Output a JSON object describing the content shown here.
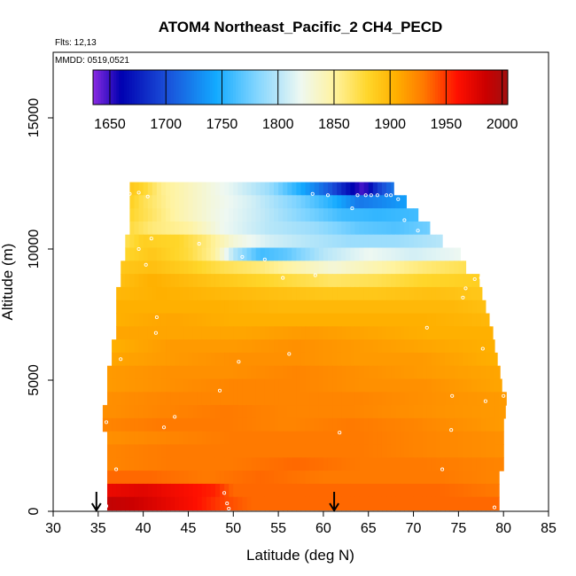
{
  "chart_data": {
    "type": "heatmap",
    "title": "ATOM4 Northeast_Pacific_2 CH4_PECD",
    "annotations": {
      "flights": "Flts: 12,13",
      "dates": "MMDD: 0519,0521"
    },
    "xlabel": "Latitude (deg N)",
    "ylabel": "Altitude (m)",
    "xlim": [
      30,
      85
    ],
    "ylim": [
      0,
      17500
    ],
    "x_ticks": [
      "30",
      "35",
      "40",
      "45",
      "50",
      "55",
      "60",
      "65",
      "70",
      "75",
      "80",
      "85"
    ],
    "y_ticks": [
      "0",
      "5000",
      "10000",
      "15000"
    ],
    "colorbar": {
      "range": [
        1635,
        2005
      ],
      "ticks": [
        "1650",
        "1700",
        "1750",
        "1800",
        "1850",
        "1900",
        "1950",
        "2000"
      ],
      "stops": [
        [
          1635,
          "#8a2be2"
        ],
        [
          1660,
          "#0000b0"
        ],
        [
          1700,
          "#1a4ed8"
        ],
        [
          1745,
          "#13aaff"
        ],
        [
          1780,
          "#7fd4ff"
        ],
        [
          1820,
          "#eef8f2"
        ],
        [
          1850,
          "#fff3a0"
        ],
        [
          1880,
          "#ffd62a"
        ],
        [
          1905,
          "#ffb000"
        ],
        [
          1930,
          "#ff7a00"
        ],
        [
          1960,
          "#ff1000"
        ],
        [
          1985,
          "#cc0000"
        ],
        [
          2005,
          "#a01010"
        ]
      ]
    },
    "profile_rows": [
      {
        "alt": 12300,
        "lat_min": 38.5,
        "lat_max": 67.8,
        "points": [
          [
            38.5,
            1890
          ],
          [
            40,
            1880
          ],
          [
            42,
            1855
          ],
          [
            46,
            1835
          ],
          [
            50,
            1815
          ],
          [
            54,
            1790
          ],
          [
            58,
            1740
          ],
          [
            61,
            1700
          ],
          [
            63,
            1665
          ],
          [
            64.5,
            1645
          ],
          [
            66,
            1690
          ],
          [
            67.8,
            1720
          ]
        ]
      },
      {
        "alt": 11800,
        "lat_min": 38.5,
        "lat_max": 69.2,
        "points": [
          [
            38.5,
            1885
          ],
          [
            40,
            1870
          ],
          [
            43,
            1850
          ],
          [
            47,
            1830
          ],
          [
            52,
            1810
          ],
          [
            57,
            1780
          ],
          [
            61,
            1750
          ],
          [
            64,
            1720
          ],
          [
            67,
            1730
          ],
          [
            69.2,
            1740
          ]
        ]
      },
      {
        "alt": 11300,
        "lat_min": 38.5,
        "lat_max": 70.5,
        "points": [
          [
            38.5,
            1880
          ],
          [
            41,
            1865
          ],
          [
            44,
            1845
          ],
          [
            48,
            1825
          ],
          [
            53,
            1805
          ],
          [
            58,
            1780
          ],
          [
            62,
            1760
          ],
          [
            66,
            1755
          ],
          [
            70.5,
            1760
          ]
        ]
      },
      {
        "alt": 10800,
        "lat_min": 38.5,
        "lat_max": 71.8,
        "points": [
          [
            38.5,
            1875
          ],
          [
            41,
            1860
          ],
          [
            45,
            1850
          ],
          [
            49,
            1820
          ],
          [
            54,
            1800
          ],
          [
            59,
            1790
          ],
          [
            64,
            1770
          ],
          [
            68,
            1765
          ],
          [
            71.8,
            1775
          ]
        ]
      },
      {
        "alt": 10300,
        "lat_min": 38.0,
        "lat_max": 73.2,
        "points": [
          [
            38,
            1870
          ],
          [
            40,
            1885
          ],
          [
            44,
            1880
          ],
          [
            47,
            1860
          ],
          [
            50,
            1830
          ],
          [
            54,
            1810
          ],
          [
            58,
            1800
          ],
          [
            63,
            1790
          ],
          [
            68,
            1790
          ],
          [
            73.2,
            1800
          ]
        ]
      },
      {
        "alt": 9800,
        "lat_min": 38.0,
        "lat_max": 75.2,
        "points": [
          [
            38,
            1880
          ],
          [
            41,
            1890
          ],
          [
            45,
            1875
          ],
          [
            48,
            1850
          ],
          [
            50,
            1800
          ],
          [
            53,
            1760
          ],
          [
            56,
            1770
          ],
          [
            60,
            1800
          ],
          [
            65,
            1820
          ],
          [
            70,
            1810
          ],
          [
            75.2,
            1820
          ]
        ]
      },
      {
        "alt": 9300,
        "lat_min": 37.5,
        "lat_max": 75.8,
        "points": [
          [
            37.5,
            1890
          ],
          [
            41,
            1895
          ],
          [
            45,
            1885
          ],
          [
            49,
            1870
          ],
          [
            53,
            1860
          ],
          [
            57,
            1845
          ],
          [
            61,
            1830
          ],
          [
            66,
            1845
          ],
          [
            71,
            1860
          ],
          [
            75.8,
            1870
          ]
        ]
      },
      {
        "alt": 8800,
        "lat_min": 37.5,
        "lat_max": 77.3,
        "points": [
          [
            37.5,
            1895
          ],
          [
            41,
            1905
          ],
          [
            46,
            1895
          ],
          [
            51,
            1885
          ],
          [
            56,
            1875
          ],
          [
            61,
            1865
          ],
          [
            66,
            1870
          ],
          [
            71,
            1880
          ],
          [
            77.3,
            1885
          ]
        ]
      },
      {
        "alt": 8300,
        "lat_min": 37.0,
        "lat_max": 77.6,
        "points": [
          [
            37,
            1900
          ],
          [
            42,
            1905
          ],
          [
            48,
            1900
          ],
          [
            54,
            1895
          ],
          [
            60,
            1890
          ],
          [
            66,
            1890
          ],
          [
            72,
            1895
          ],
          [
            77.6,
            1890
          ]
        ]
      },
      {
        "alt": 7800,
        "lat_min": 37.0,
        "lat_max": 78.0,
        "points": [
          [
            37,
            1905
          ],
          [
            42,
            1905
          ],
          [
            48,
            1905
          ],
          [
            55,
            1900
          ],
          [
            62,
            1900
          ],
          [
            68,
            1900
          ],
          [
            74,
            1900
          ],
          [
            78,
            1895
          ]
        ]
      },
      {
        "alt": 7300,
        "lat_min": 37.0,
        "lat_max": 78.4,
        "points": [
          [
            37,
            1905
          ],
          [
            43,
            1910
          ],
          [
            50,
            1905
          ],
          [
            57,
            1905
          ],
          [
            64,
            1905
          ],
          [
            71,
            1905
          ],
          [
            78.4,
            1900
          ]
        ]
      },
      {
        "alt": 6800,
        "lat_min": 37.0,
        "lat_max": 78.8,
        "points": [
          [
            37,
            1910
          ],
          [
            44,
            1910
          ],
          [
            51,
            1910
          ],
          [
            58,
            1915
          ],
          [
            65,
            1910
          ],
          [
            72,
            1905
          ],
          [
            78.8,
            1905
          ]
        ]
      },
      {
        "alt": 6300,
        "lat_min": 36.5,
        "lat_max": 79.0,
        "points": [
          [
            36.5,
            1905
          ],
          [
            43,
            1915
          ],
          [
            50,
            1915
          ],
          [
            57,
            1920
          ],
          [
            64,
            1915
          ],
          [
            71,
            1910
          ],
          [
            79,
            1905
          ]
        ]
      },
      {
        "alt": 5800,
        "lat_min": 36.5,
        "lat_max": 79.3,
        "points": [
          [
            36.5,
            1910
          ],
          [
            43,
            1915
          ],
          [
            50,
            1920
          ],
          [
            57,
            1920
          ],
          [
            64,
            1915
          ],
          [
            71,
            1915
          ],
          [
            79.3,
            1905
          ]
        ]
      },
      {
        "alt": 5300,
        "lat_min": 36.0,
        "lat_max": 79.6,
        "points": [
          [
            36,
            1915
          ],
          [
            43,
            1920
          ],
          [
            50,
            1920
          ],
          [
            57,
            1925
          ],
          [
            64,
            1920
          ],
          [
            71,
            1915
          ],
          [
            79.6,
            1910
          ]
        ]
      },
      {
        "alt": 4800,
        "lat_min": 36.0,
        "lat_max": 79.8,
        "points": [
          [
            36,
            1915
          ],
          [
            43,
            1920
          ],
          [
            50,
            1925
          ],
          [
            57,
            1925
          ],
          [
            64,
            1920
          ],
          [
            71,
            1920
          ],
          [
            79.8,
            1910
          ]
        ]
      },
      {
        "alt": 4300,
        "lat_min": 36.0,
        "lat_max": 80.3,
        "points": [
          [
            36,
            1920
          ],
          [
            43,
            1925
          ],
          [
            50,
            1925
          ],
          [
            57,
            1925
          ],
          [
            64,
            1925
          ],
          [
            71,
            1920
          ],
          [
            80.3,
            1915
          ]
        ]
      },
      {
        "alt": 3800,
        "lat_min": 35.5,
        "lat_max": 80.2,
        "points": [
          [
            35.5,
            1920
          ],
          [
            42,
            1925
          ],
          [
            49,
            1930
          ],
          [
            56,
            1925
          ],
          [
            63,
            1925
          ],
          [
            70,
            1920
          ],
          [
            80.2,
            1915
          ]
        ]
      },
      {
        "alt": 3300,
        "lat_min": 35.5,
        "lat_max": 80.0,
        "points": [
          [
            35.5,
            1925
          ],
          [
            42,
            1930
          ],
          [
            49,
            1930
          ],
          [
            56,
            1925
          ],
          [
            63,
            1930
          ],
          [
            70,
            1925
          ],
          [
            80,
            1915
          ]
        ]
      },
      {
        "alt": 2800,
        "lat_min": 36.0,
        "lat_max": 80.0,
        "points": [
          [
            36,
            1920
          ],
          [
            43,
            1925
          ],
          [
            50,
            1930
          ],
          [
            57,
            1930
          ],
          [
            64,
            1930
          ],
          [
            71,
            1925
          ],
          [
            80,
            1920
          ]
        ]
      },
      {
        "alt": 2300,
        "lat_min": 36.0,
        "lat_max": 80.0,
        "points": [
          [
            36,
            1925
          ],
          [
            43,
            1930
          ],
          [
            50,
            1930
          ],
          [
            57,
            1930
          ],
          [
            64,
            1930
          ],
          [
            71,
            1925
          ],
          [
            80,
            1920
          ]
        ]
      },
      {
        "alt": 1800,
        "lat_min": 36.0,
        "lat_max": 80.0,
        "points": [
          [
            36,
            1925
          ],
          [
            43,
            1930
          ],
          [
            50,
            1930
          ],
          [
            57,
            1935
          ],
          [
            64,
            1930
          ],
          [
            71,
            1930
          ],
          [
            80,
            1925
          ]
        ]
      },
      {
        "alt": 1300,
        "lat_min": 36.0,
        "lat_max": 79.5,
        "points": [
          [
            36,
            1935
          ],
          [
            41,
            1935
          ],
          [
            47,
            1930
          ],
          [
            53,
            1935
          ],
          [
            60,
            1930
          ],
          [
            67,
            1930
          ],
          [
            73,
            1930
          ],
          [
            79.5,
            1925
          ]
        ]
      },
      {
        "alt": 800,
        "lat_min": 36.0,
        "lat_max": 79.5,
        "points": [
          [
            36,
            1970
          ],
          [
            40,
            1975
          ],
          [
            44,
            1965
          ],
          [
            48,
            1955
          ],
          [
            50,
            1935
          ],
          [
            54,
            1935
          ],
          [
            60,
            1935
          ],
          [
            67,
            1935
          ],
          [
            73,
            1935
          ],
          [
            79.5,
            1930
          ]
        ]
      },
      {
        "alt": 300,
        "lat_min": 36.0,
        "lat_max": 79.5,
        "points": [
          [
            36,
            1990
          ],
          [
            39,
            1985
          ],
          [
            42,
            1975
          ],
          [
            46,
            1960
          ],
          [
            49,
            1945
          ],
          [
            52,
            1935
          ],
          [
            58,
            1935
          ],
          [
            65,
            1935
          ],
          [
            72,
            1935
          ],
          [
            79.5,
            1935
          ]
        ]
      }
    ],
    "sample_points": [
      [
        38.5,
        12100
      ],
      [
        39.5,
        12150
      ],
      [
        40.5,
        12000
      ],
      [
        58.8,
        12100
      ],
      [
        60.5,
        12050
      ],
      [
        63.2,
        11550
      ],
      [
        63.8,
        12050
      ],
      [
        64.7,
        12050
      ],
      [
        65.3,
        12050
      ],
      [
        66.0,
        12050
      ],
      [
        67.0,
        12050
      ],
      [
        67.5,
        12050
      ],
      [
        68.3,
        11900
      ],
      [
        69.0,
        11100
      ],
      [
        70.5,
        10700
      ],
      [
        40.9,
        10400
      ],
      [
        46.2,
        10200
      ],
      [
        39.5,
        10000
      ],
      [
        51.0,
        9700
      ],
      [
        53.5,
        9600
      ],
      [
        40.3,
        9400
      ],
      [
        59.1,
        9000
      ],
      [
        55.5,
        8900
      ],
      [
        75.5,
        8150
      ],
      [
        76.8,
        8850
      ],
      [
        77.5,
        8900
      ],
      [
        75.8,
        8500
      ],
      [
        41.5,
        7400
      ],
      [
        71.5,
        7000
      ],
      [
        41.4,
        6800
      ],
      [
        77.7,
        6200
      ],
      [
        37.5,
        5800
      ],
      [
        50.6,
        5700
      ],
      [
        56.2,
        6000
      ],
      [
        48.5,
        4600
      ],
      [
        74.3,
        4400
      ],
      [
        78.0,
        4200
      ],
      [
        80.0,
        4400
      ],
      [
        43.5,
        3600
      ],
      [
        42.3,
        3200
      ],
      [
        61.8,
        3000
      ],
      [
        74.2,
        3100
      ],
      [
        35.9,
        3400
      ],
      [
        37.0,
        1600
      ],
      [
        73.2,
        1600
      ],
      [
        49.0,
        700
      ],
      [
        49.3,
        300
      ],
      [
        49.5,
        100
      ],
      [
        35.9,
        200
      ],
      [
        79.0,
        150
      ]
    ],
    "flight_markers": [
      34.8,
      61.2
    ]
  }
}
